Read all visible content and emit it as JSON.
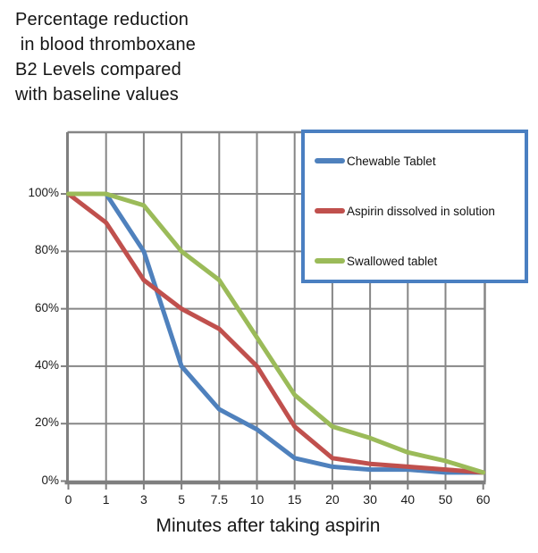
{
  "title": "Percentage reduction\n in blood thromboxane\nB2 Levels compared\nwith baseline values",
  "x_axis": {
    "label": "Minutes after taking aspirin",
    "ticks": [
      "0",
      "1",
      "3",
      "5",
      "7.5",
      "10",
      "15",
      "20",
      "30",
      "40",
      "50",
      "60"
    ]
  },
  "y_axis": {
    "ticks": [
      "100%",
      "80%",
      "60%",
      "40%",
      "20%",
      "0%"
    ]
  },
  "colors": {
    "grid": "#868686",
    "axis": "#7f7f7f",
    "legend_border": "#4a7fc1",
    "text": "#1a1a1a"
  },
  "chart_data": {
    "type": "line",
    "title": "Percentage reduction in blood thromboxane B2 Levels compared with baseline values",
    "xlabel": "Minutes after taking aspirin",
    "ylabel": "",
    "categories": [
      0,
      1,
      3,
      5,
      7.5,
      10,
      15,
      20,
      30,
      40,
      50,
      60
    ],
    "ylim": [
      0,
      121
    ],
    "y_tick_values": [
      0,
      20,
      40,
      60,
      80,
      100
    ],
    "grid": true,
    "legend_position": "top-right",
    "series": [
      {
        "name": "Chewable Tablet",
        "color": "#4F81BD",
        "values": [
          100,
          100,
          80,
          40,
          25,
          18,
          8,
          5,
          4,
          4,
          3,
          3
        ]
      },
      {
        "name": "Aspirin dissolved in solution",
        "color": "#C0504D",
        "values": [
          100,
          90,
          70,
          60,
          53,
          40,
          19,
          8,
          6,
          5,
          4,
          3
        ]
      },
      {
        "name": "Swallowed tablet",
        "color": "#9BBB59",
        "values": [
          100,
          100,
          96,
          80,
          70,
          50,
          30,
          19,
          15,
          10,
          7,
          3
        ]
      }
    ]
  }
}
